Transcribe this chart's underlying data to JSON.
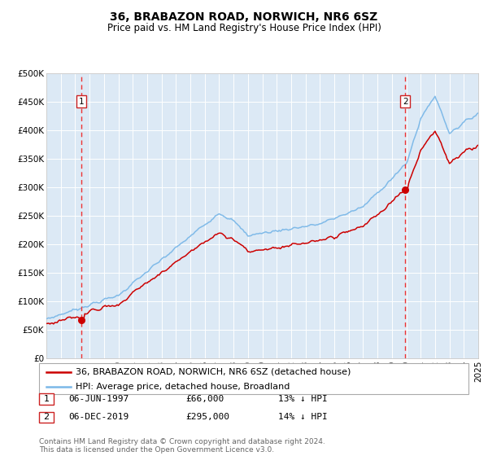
{
  "title": "36, BRABAZON ROAD, NORWICH, NR6 6SZ",
  "subtitle": "Price paid vs. HM Land Registry's House Price Index (HPI)",
  "background_color": "#ffffff",
  "plot_bg_color": "#dce9f5",
  "grid_color": "#ffffff",
  "hpi_color": "#7bb8e8",
  "price_color": "#cc0000",
  "marker_color": "#cc0000",
  "vline_color": "#ee3333",
  "annotation_box_color": "#cc2222",
  "ylim": [
    0,
    500000
  ],
  "yticks": [
    0,
    50000,
    100000,
    150000,
    200000,
    250000,
    300000,
    350000,
    400000,
    450000,
    500000
  ],
  "ytick_labels": [
    "£0",
    "£50K",
    "£100K",
    "£150K",
    "£200K",
    "£250K",
    "£300K",
    "£350K",
    "£400K",
    "£450K",
    "£500K"
  ],
  "year_start": 1995,
  "year_end": 2025,
  "sale1_year": 1997.44,
  "sale1_price": 66000,
  "sale1_label": "1",
  "sale1_date": "06-JUN-1997",
  "sale1_price_str": "£66,000",
  "sale1_hpi_pct": "13% ↓ HPI",
  "sale2_year": 2019.92,
  "sale2_price": 295000,
  "sale2_label": "2",
  "sale2_date": "06-DEC-2019",
  "sale2_price_str": "£295,000",
  "sale2_hpi_pct": "14% ↓ HPI",
  "legend_line1": "36, BRABAZON ROAD, NORWICH, NR6 6SZ (detached house)",
  "legend_line2": "HPI: Average price, detached house, Broadland",
  "footer": "Contains HM Land Registry data © Crown copyright and database right 2024.\nThis data is licensed under the Open Government Licence v3.0.",
  "title_fontsize": 10,
  "subtitle_fontsize": 8.5,
  "tick_fontsize": 7.5,
  "legend_fontsize": 8,
  "table_fontsize": 8
}
